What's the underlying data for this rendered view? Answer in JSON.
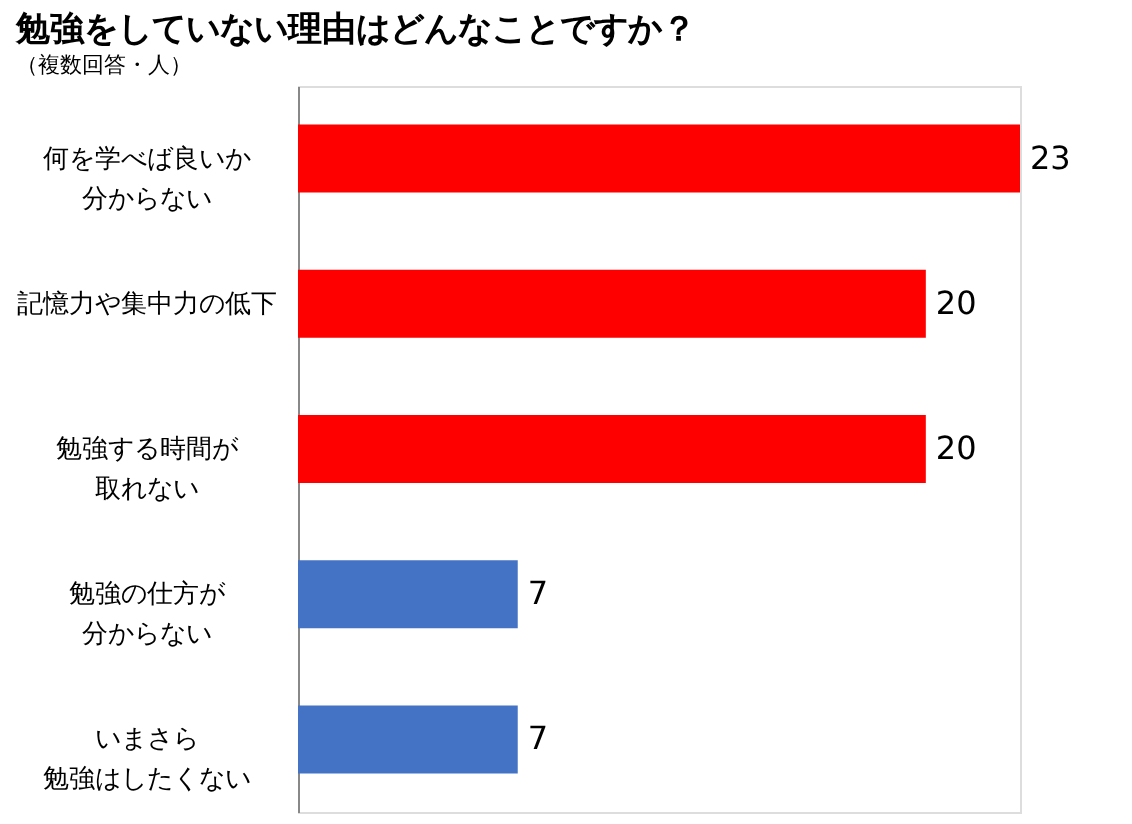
{
  "chart_data": {
    "type": "bar",
    "orientation": "horizontal",
    "title": "勉強をしていない理由はどんなことですか？",
    "subtitle": "（複数回答・人）",
    "categories": [
      "何を学べば良いか分からない",
      "記憶力や集中力の低下",
      "勉強する時間が取れない",
      "勉強の仕方が分からない",
      "いまさら勉強はしたくない"
    ],
    "values": [
      23,
      20,
      20,
      7,
      7
    ],
    "colors": [
      "#ff0000",
      "#ff0000",
      "#ff0000",
      "#4472c4",
      "#4472c4"
    ],
    "data_labels": true,
    "tick_labels": "y",
    "grid": false
  }
}
